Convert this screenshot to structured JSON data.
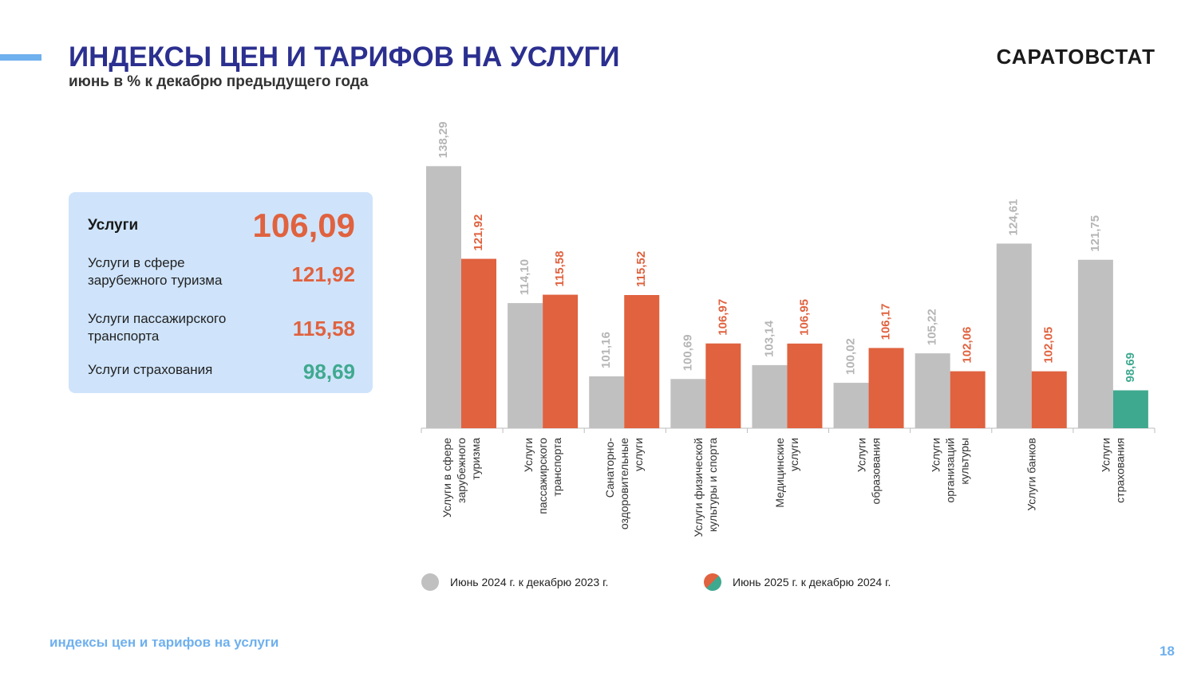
{
  "header": {
    "title": "ИНДЕКСЫ ЦЕН И ТАРИФОВ НА УСЛУГИ",
    "subtitle": "июнь в % к декабрю предыдущего года",
    "brand": "САРАТОВСТАТ"
  },
  "summary": {
    "main_label": "Услуги",
    "main_value": "106,09",
    "rows": [
      {
        "label": "Услуги в сфере зарубежного туризма",
        "value": "121,92"
      },
      {
        "label": "Услуги пассажирского транспорта",
        "value": "115,58"
      },
      {
        "label": "Услуги страхования",
        "value": "98,69"
      }
    ],
    "colors": {
      "main": "#e0623f",
      "up": "#e0623f",
      "down": "#3fa98f"
    }
  },
  "chart_data": {
    "type": "bar",
    "categories": [
      "Услуги в сфере зарубежного туризма",
      "Услуги пассажирского транспорта",
      "Санаторно-оздоровительные услуги",
      "Услуги физической культуры и спорта",
      "Медицинские услуги",
      "Услуги образования",
      "Услуги организаций культуры",
      "Услуги банков",
      "Услуги страхования"
    ],
    "category_label_lines": [
      [
        "Услуги в сфере",
        "зарубежного",
        "туризма"
      ],
      [
        "Услуги",
        "пассажирского",
        "транспорта"
      ],
      [
        "Санаторно-",
        "оздоровительные",
        "услуги"
      ],
      [
        "Услуги физической",
        "культуры и спорта"
      ],
      [
        "Медицинские",
        "услуги"
      ],
      [
        "Услуги",
        "образования"
      ],
      [
        "Услуги",
        "организаций",
        "культуры"
      ],
      [
        "Услуги банков"
      ],
      [
        "Услуги",
        "страхования"
      ]
    ],
    "series": [
      {
        "name": "Июнь  2024 г. к декабрю  2023 г.",
        "values": [
          138.29,
          114.1,
          101.16,
          100.69,
          103.14,
          100.02,
          105.22,
          124.61,
          121.75
        ],
        "labels": [
          "138,29",
          "114,10",
          "101,16",
          "100,69",
          "103,14",
          "100,02",
          "105,22",
          "124,61",
          "121,75"
        ],
        "color": "#c0c0c0"
      },
      {
        "name": "Июнь  2025 г. к декабрю  2024 г.",
        "values": [
          121.92,
          115.58,
          115.52,
          106.97,
          106.95,
          106.17,
          102.06,
          102.05,
          98.69
        ],
        "labels": [
          "121,92",
          "115,58",
          "115,52",
          "106,97",
          "106,95",
          "106,17",
          "102,06",
          "102,05",
          "98,69"
        ],
        "color": "#e0623f",
        "below_100_color": "#3fa98f"
      }
    ],
    "ylim": [
      92,
      142
    ],
    "grid": false,
    "legend_position": "bottom"
  },
  "footer": {
    "text": "индексы цен и тарифов на услуги",
    "page": "18"
  }
}
